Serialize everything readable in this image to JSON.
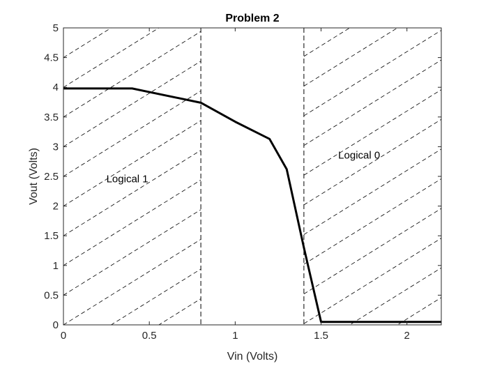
{
  "chart_data": {
    "type": "line",
    "title": "Problem 2",
    "xlabel": "Vin (Volts)",
    "ylabel": "Vout (Volts)",
    "xlim": [
      0,
      2.2
    ],
    "ylim": [
      0,
      5
    ],
    "xticks": [
      0,
      0.5,
      1,
      1.5,
      2
    ],
    "xtick_labels": [
      "0",
      "0.5",
      "1",
      "1.5",
      "2"
    ],
    "yticks": [
      0,
      0.5,
      1,
      1.5,
      2,
      2.5,
      3,
      3.5,
      4,
      4.5,
      5
    ],
    "ytick_labels": [
      "0",
      "0.5",
      "1",
      "1.5",
      "2",
      "2.5",
      "3",
      "3.5",
      "4",
      "4.5",
      "5"
    ],
    "grid": false,
    "series": [
      {
        "x": [
          0,
          0.4,
          0.8,
          1.0,
          1.2,
          1.3,
          1.4,
          1.5,
          2.2
        ],
        "y": [
          3.98,
          3.98,
          3.74,
          3.42,
          3.13,
          2.62,
          1.3,
          0.05,
          0.05
        ],
        "color": "#000000"
      }
    ],
    "boundaries": [
      {
        "x": 0.8,
        "style": "dashed"
      },
      {
        "x": 1.4,
        "style": "dashed"
      }
    ],
    "hatched_regions": [
      {
        "x_range": [
          0,
          0.8
        ],
        "slope": 1.8,
        "spacing": 0.5
      },
      {
        "x_range": [
          1.4,
          2.2
        ],
        "slope": 1.8,
        "spacing": 0.5
      }
    ],
    "annotations": [
      {
        "text": "Logical 1",
        "x": 0.25,
        "y": 2.4
      },
      {
        "text": "Logical 0",
        "x": 1.6,
        "y": 2.8
      }
    ]
  }
}
